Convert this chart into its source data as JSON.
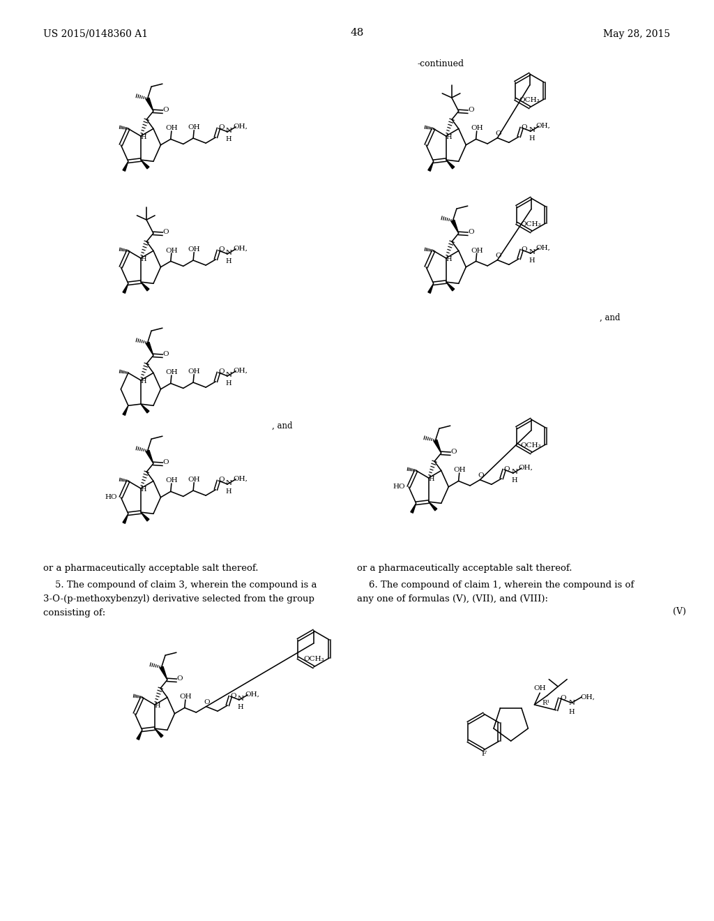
{
  "header_left": "US 2015/0148360 A1",
  "header_right": "May 28, 2015",
  "page_number": "48",
  "continued": "-continued",
  "text1": "or a pharmaceutically acceptable salt thereof.",
  "text2a": "    5. The compound of claim 3, wherein the compound is a",
  "text2b": "3-O-(p-methoxybenzyl) derivative selected from the group",
  "text2c": "consisting of:",
  "text3": "or a pharmaceutically acceptable salt thereof.",
  "text4a": "    6. The compound of claim 1, wherein the compound is of",
  "text4b": "any one of formulas (V), (VII), and (VIII):",
  "label_V": "(V)",
  "bg": "#ffffff"
}
